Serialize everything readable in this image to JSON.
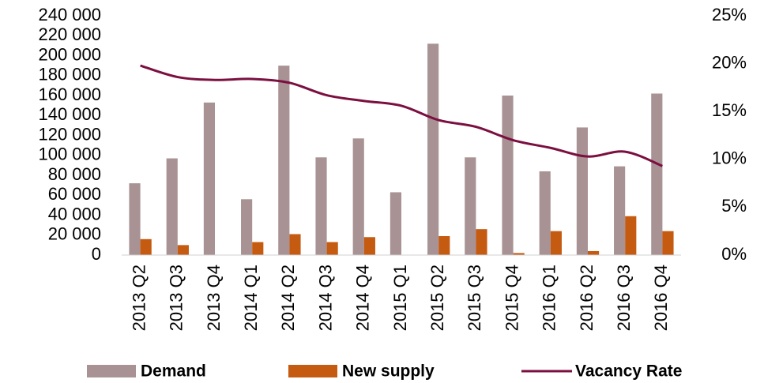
{
  "chart_data": {
    "type": "bar_line",
    "categories": [
      "2013 Q2",
      "2013 Q3",
      "2013 Q4",
      "2014 Q1",
      "2014 Q2",
      "2014 Q3",
      "2014 Q4",
      "2015 Q1",
      "2015 Q2",
      "2015 Q3",
      "2015 Q4",
      "2016 Q1",
      "2016 Q2",
      "2016 Q3",
      "2016 Q4"
    ],
    "series": [
      {
        "name": "Demand",
        "type": "bar",
        "color": "#a89294",
        "values": [
          72000,
          97000,
          153000,
          56000,
          190000,
          98000,
          117000,
          63000,
          212000,
          98000,
          160000,
          84000,
          128000,
          89000,
          162000
        ]
      },
      {
        "name": "New supply",
        "type": "bar",
        "color": "#c55a11",
        "values": [
          16000,
          10000,
          0,
          13000,
          21000,
          13000,
          18000,
          0,
          19000,
          26000,
          2000,
          24000,
          4000,
          39000,
          24000
        ]
      },
      {
        "name": "Vacancy Rate",
        "type": "line",
        "axis": "y2",
        "color": "#7b1040",
        "values": [
          19.8,
          18.6,
          18.3,
          18.4,
          18.0,
          16.7,
          16.1,
          15.6,
          14.1,
          13.4,
          12.0,
          11.2,
          10.3,
          10.8,
          9.3
        ]
      }
    ],
    "ylim": [
      0,
      240000
    ],
    "yticks": [
      {
        "value": 0,
        "label": "0"
      },
      {
        "value": 20000,
        "label": "20 000"
      },
      {
        "value": 40000,
        "label": "40 000"
      },
      {
        "value": 60000,
        "label": "60 000"
      },
      {
        "value": 80000,
        "label": "80 000"
      },
      {
        "value": 100000,
        "label": "100 000"
      },
      {
        "value": 120000,
        "label": "120 000"
      },
      {
        "value": 140000,
        "label": "140 000"
      },
      {
        "value": 160000,
        "label": "160 000"
      },
      {
        "value": 180000,
        "label": "180 000"
      },
      {
        "value": 200000,
        "label": "200 000"
      },
      {
        "value": 220000,
        "label": "220 000"
      },
      {
        "value": 240000,
        "label": "240 000"
      }
    ],
    "y2lim": [
      0,
      25
    ],
    "y2ticks": [
      {
        "value": 0,
        "label": "0%"
      },
      {
        "value": 5,
        "label": "5%"
      },
      {
        "value": 10,
        "label": "10%"
      },
      {
        "value": 15,
        "label": "15%"
      },
      {
        "value": 20,
        "label": "20%"
      },
      {
        "value": 25,
        "label": "25%"
      }
    ],
    "legend": "bottom"
  }
}
